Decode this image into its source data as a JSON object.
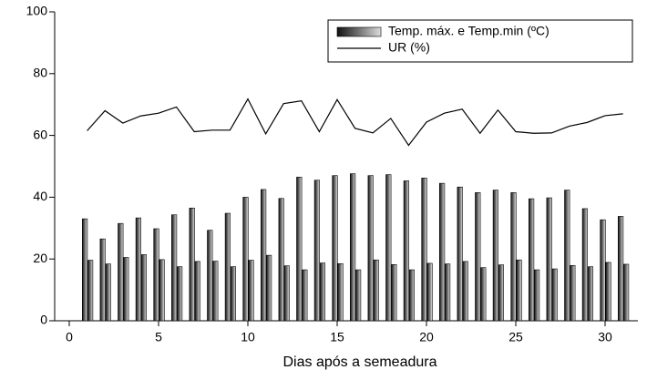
{
  "chart_data": {
    "type": "bar-line",
    "x_label": "Dias após a semeadura",
    "x": [
      1,
      2,
      3,
      4,
      5,
      6,
      7,
      8,
      9,
      10,
      11,
      12,
      13,
      14,
      15,
      16,
      17,
      18,
      19,
      20,
      21,
      22,
      23,
      24,
      25,
      26,
      27,
      28,
      29,
      30,
      31
    ],
    "series": [
      {
        "name": "Temp. máx. e Temp.min (ºC)",
        "type": "bar",
        "color": "#000000",
        "max": [
          33,
          26.5,
          31.5,
          33.3,
          29.8,
          34.3,
          36.5,
          29.3,
          34.8,
          40,
          42.5,
          39.6,
          46.5,
          45.5,
          47,
          47.6,
          47,
          47.3,
          45.3,
          46.2,
          44.5,
          43.3,
          41.5,
          42.3,
          41.5,
          39.5,
          39.8,
          42.3,
          36.3,
          32.7,
          33.8
        ],
        "min": [
          19.6,
          18.4,
          20.5,
          21.4,
          19.8,
          17.5,
          19.2,
          19.3,
          17.5,
          19.6,
          21.2,
          17.8,
          16.5,
          18.7,
          18.5,
          16.5,
          19.7,
          18.2,
          16.5,
          18.6,
          18.4,
          19.2,
          17.2,
          18.1,
          19.7,
          16.5,
          16.8,
          17.9,
          17.5,
          18.9,
          18.3
        ]
      },
      {
        "name": "UR (%)",
        "type": "line",
        "color": "#000000",
        "values": [
          61.5,
          68,
          64,
          66.3,
          67.2,
          69.2,
          61.2,
          61.7,
          61.7,
          71.8,
          60.5,
          70.3,
          71.2,
          61.2,
          71.6,
          62.3,
          60.8,
          65.5,
          56.8,
          64.3,
          67.2,
          68.5,
          60.7,
          68.2,
          61.2,
          60.7,
          60.8,
          63,
          64.2,
          66.4,
          67
        ]
      }
    ],
    "xlim": [
      -1,
      32
    ],
    "xticks": [
      0,
      5,
      10,
      15,
      20,
      25,
      30
    ],
    "ylim": [
      0,
      100
    ],
    "yticks": [
      0,
      20,
      40,
      60,
      80,
      100
    ],
    "legend": "top-right"
  }
}
